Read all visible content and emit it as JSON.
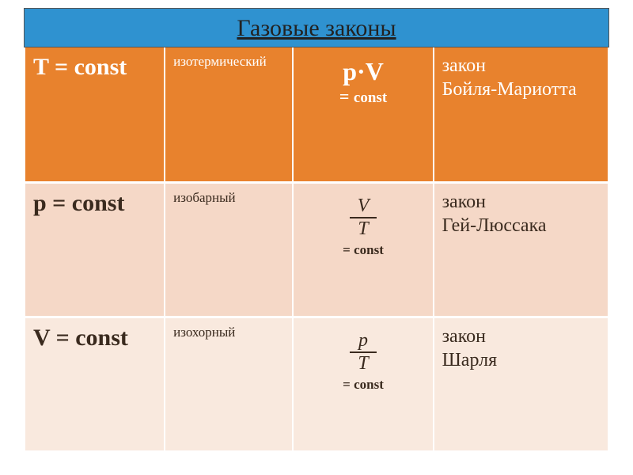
{
  "title": "Газовые законы",
  "colors": {
    "title_bg": "#2f92d0",
    "row_a_bg": "#e8822d",
    "row_a_fg": "#ffffff",
    "row_b_bg": "#f5d8c7",
    "row_b_fg": "#3a2a1e",
    "row_c_bg": "#f9e9de",
    "row_c_fg": "#3a2a1e"
  },
  "rows": [
    {
      "condition": "T = const",
      "process": "изотермический",
      "formula": {
        "type": "product",
        "expr": "p·V",
        "eq": "= ",
        "const": "const"
      },
      "law_label": "закон",
      "law_name": "Бойля-Мариотта"
    },
    {
      "condition": "p = const",
      "process": "изобарный",
      "formula": {
        "type": "fraction",
        "num": "V",
        "den": "T",
        "eq": "= const"
      },
      "law_label": "закон",
      "law_name": "Гей-Люссака"
    },
    {
      "condition": "V = const",
      "process": "изохорный",
      "formula": {
        "type": "fraction",
        "num": "p",
        "den": "T",
        "eq": "= const"
      },
      "law_label": "закон",
      "law_name": "Шарля"
    }
  ]
}
